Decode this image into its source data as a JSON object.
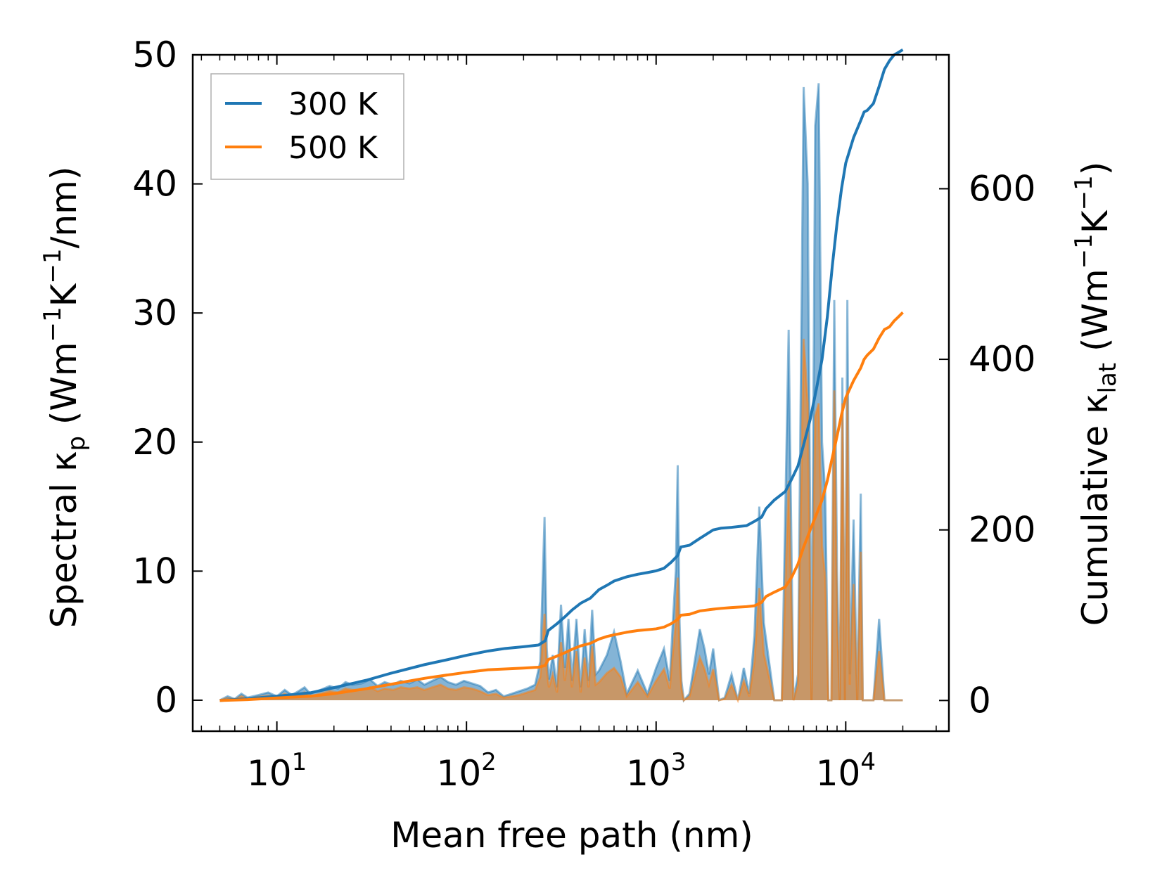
{
  "chart_data": {
    "type": "line",
    "x_scale": "log",
    "xlabel": "Mean free path (nm)",
    "ylabel_left": {
      "main": "Spectral κ",
      "sub": "p",
      "unit_open": " (Wm",
      "unit_exp1": "−1",
      "unit_mid": "K",
      "unit_exp2": "−1",
      "unit_close": "/nm)"
    },
    "ylabel_right": {
      "main": "Cumulative κ",
      "sub": "lat",
      "unit_open": " (Wm",
      "unit_exp1": "−1",
      "unit_mid": "K",
      "unit_exp2": "−1",
      "unit_close": ")"
    },
    "xlim": [
      3.6,
      35000
    ],
    "ylim_left": [
      -2.4,
      50
    ],
    "ylim_right": [
      -36,
      757
    ],
    "left_ticks": [
      0,
      10,
      20,
      30,
      40,
      50
    ],
    "right_ticks": [
      0,
      200,
      400,
      600
    ],
    "x_ticks": [
      {
        "value": 10,
        "base": "10",
        "exp": "1"
      },
      {
        "value": 100,
        "base": "10",
        "exp": "2"
      },
      {
        "value": 1000,
        "base": "10",
        "exp": "3"
      },
      {
        "value": 10000,
        "base": "10",
        "exp": "4"
      }
    ],
    "legend": {
      "position": "top-left",
      "entries": [
        {
          "label": "300 K",
          "color": "#1f77b4"
        },
        {
          "label": "500 K",
          "color": "#ff7f0e"
        }
      ]
    },
    "spectral": [
      {
        "name": "300 K",
        "color": "#1f77b4",
        "x": [
          5,
          5.5,
          6,
          6.5,
          7,
          8,
          9,
          10,
          11,
          12,
          13,
          14,
          15,
          17,
          19,
          21,
          23,
          25,
          28,
          31,
          34,
          37,
          41,
          45,
          50,
          55,
          60,
          66,
          73,
          80,
          88,
          97,
          107,
          118,
          130,
          143,
          157,
          173,
          190,
          209,
          230,
          245,
          258,
          265,
          272,
          285,
          300,
          315,
          330,
          345,
          360,
          380,
          400,
          420,
          440,
          460,
          480,
          500,
          550,
          600,
          650,
          700,
          800,
          900,
          1000,
          1100,
          1180,
          1230,
          1270,
          1300,
          1330,
          1360,
          1400,
          1500,
          1700,
          1800,
          1900,
          2000,
          2150,
          2300,
          2500,
          2700,
          2900,
          3100,
          3300,
          3500,
          3700,
          3900,
          4200,
          4600,
          5000,
          5300,
          5600,
          6000,
          6300,
          6600,
          6900,
          7200,
          7500,
          7800,
          8100,
          8400,
          8700,
          9000,
          9300,
          9600,
          9900,
          10200,
          10500,
          11000,
          11500,
          12000,
          12300,
          12600,
          13000,
          14000,
          15000,
          16000,
          17000,
          18000,
          18500,
          19000,
          19500,
          20000
        ],
        "y": [
          0,
          0.3,
          0.1,
          0.5,
          0.2,
          0.4,
          0.6,
          0.3,
          0.8,
          0.4,
          0.7,
          1.0,
          0.5,
          0.8,
          1.1,
          0.9,
          1.4,
          1.2,
          1.3,
          1.6,
          1.1,
          1.4,
          1.2,
          1.5,
          1.3,
          1.6,
          1.2,
          1.5,
          1.8,
          1.4,
          1.2,
          1.5,
          1.3,
          1.1,
          0.6,
          0.8,
          0.3,
          0.5,
          0.7,
          0.9,
          1.2,
          3.0,
          14.2,
          4.0,
          1.6,
          3.5,
          1.0,
          7.4,
          2.5,
          6.3,
          1.5,
          6.3,
          1.0,
          5.5,
          1.5,
          7.0,
          2.0,
          2.3,
          3.5,
          5.3,
          3.0,
          0.5,
          2.3,
          0.5,
          2.5,
          4.0,
          1.5,
          6.5,
          10.0,
          18.2,
          6.0,
          1.5,
          0,
          0.5,
          5.5,
          4.0,
          2.0,
          4.0,
          0,
          0.2,
          2.0,
          0,
          2.5,
          0.5,
          5.0,
          15.0,
          6.0,
          3.5,
          0,
          0,
          28.7,
          0,
          2.0,
          47.5,
          40.0,
          0,
          44.5,
          47.8,
          20.0,
          16.0,
          0,
          0,
          31.0,
          10.0,
          0,
          25.0,
          0,
          31.0,
          2.0,
          14.0,
          0,
          16.0,
          0,
          0,
          0,
          0,
          6.3,
          0,
          0,
          0,
          0,
          0,
          0,
          0
        ]
      },
      {
        "name": "500 K",
        "color": "#ff7f0e",
        "x": [
          5,
          5.5,
          6,
          6.5,
          7,
          8,
          9,
          10,
          11,
          12,
          13,
          14,
          15,
          17,
          19,
          21,
          23,
          25,
          28,
          31,
          34,
          37,
          41,
          45,
          50,
          55,
          60,
          66,
          73,
          80,
          88,
          97,
          107,
          118,
          130,
          143,
          157,
          173,
          190,
          209,
          230,
          245,
          258,
          265,
          272,
          285,
          300,
          315,
          330,
          345,
          360,
          380,
          400,
          420,
          440,
          460,
          480,
          500,
          550,
          600,
          650,
          700,
          800,
          900,
          1000,
          1100,
          1180,
          1230,
          1270,
          1300,
          1330,
          1360,
          1400,
          1500,
          1700,
          1800,
          1900,
          2000,
          2150,
          2300,
          2500,
          2700,
          2900,
          3100,
          3300,
          3500,
          3700,
          3900,
          4200,
          4600,
          5000,
          5300,
          5600,
          6000,
          6300,
          6600,
          6900,
          7200,
          7500,
          7800,
          8100,
          8400,
          8700,
          9000,
          9300,
          9600,
          9900,
          10200,
          10500,
          11000,
          11500,
          12000,
          12300,
          12600,
          13000,
          14000,
          15000,
          16000,
          17000,
          18000,
          18500,
          19000,
          19500,
          20000
        ],
        "y": [
          0,
          0.15,
          0.05,
          0.3,
          0.1,
          0.25,
          0.35,
          0.2,
          0.5,
          0.25,
          0.45,
          0.6,
          0.3,
          0.5,
          0.7,
          0.6,
          0.9,
          0.8,
          0.8,
          1.0,
          0.7,
          0.9,
          0.8,
          1.0,
          0.9,
          1.0,
          0.8,
          1.0,
          1.2,
          0.9,
          0.8,
          1.0,
          0.9,
          0.7,
          0.4,
          0.5,
          0.2,
          0.3,
          0.4,
          0.6,
          0.8,
          1.8,
          6.7,
          2.3,
          1.0,
          2.0,
          0.6,
          4.5,
          1.5,
          3.8,
          1.0,
          3.8,
          0.6,
          3.3,
          1.0,
          4.2,
          1.2,
          1.4,
          2.1,
          2.5,
          1.8,
          0.3,
          1.4,
          0.3,
          1.5,
          2.4,
          0.9,
          3.9,
          6.0,
          9.5,
          3.6,
          0.9,
          0,
          0.3,
          3.3,
          2.4,
          1.2,
          2.4,
          0,
          0.1,
          1.2,
          0,
          1.5,
          0.3,
          3.0,
          8.7,
          3.6,
          2.1,
          0,
          0,
          17.0,
          0,
          1.2,
          28.0,
          23.0,
          0,
          22.0,
          23.0,
          12.0,
          9.5,
          0,
          0,
          24.0,
          6.0,
          0,
          23.0,
          0,
          24.0,
          1.2,
          9.0,
          0,
          11.5,
          0,
          0,
          0,
          0,
          3.8,
          0,
          0,
          0,
          0,
          0,
          0,
          0
        ]
      }
    ],
    "cumulative": [
      {
        "name": "300 K",
        "color": "#1f77b4",
        "x": [
          5,
          7,
          10,
          15,
          20,
          30,
          40,
          60,
          80,
          100,
          130,
          160,
          200,
          240,
          260,
          270,
          300,
          330,
          360,
          400,
          450,
          500,
          550,
          600,
          700,
          800,
          900,
          1000,
          1100,
          1200,
          1300,
          1350,
          1500,
          1700,
          2000,
          2200,
          2500,
          3000,
          3300,
          3600,
          3800,
          4200,
          4800,
          5200,
          5600,
          6000,
          6500,
          7000,
          7500,
          8000,
          8500,
          9000,
          9500,
          10000,
          11000,
          12000,
          12500,
          13000,
          14000,
          15000,
          16000,
          17000,
          18000,
          19000,
          20000
        ],
        "y": [
          0,
          2,
          5,
          9,
          15,
          24,
          32,
          42,
          48,
          53,
          58,
          61,
          63,
          65,
          70,
          82,
          90,
          98,
          106,
          114,
          120,
          130,
          135,
          140,
          145,
          148,
          150,
          152,
          155,
          162,
          170,
          180,
          182,
          190,
          200,
          202,
          203,
          205,
          210,
          215,
          225,
          235,
          245,
          260,
          275,
          300,
          330,
          365,
          400,
          450,
          510,
          560,
          600,
          630,
          660,
          680,
          690,
          692,
          700,
          720,
          740,
          750,
          757,
          760,
          763
        ]
      },
      {
        "name": "500 K",
        "color": "#ff7f0e",
        "x": [
          5,
          7,
          10,
          15,
          20,
          30,
          40,
          60,
          80,
          100,
          130,
          160,
          200,
          240,
          260,
          270,
          300,
          330,
          360,
          400,
          450,
          500,
          550,
          600,
          700,
          800,
          900,
          1000,
          1100,
          1200,
          1300,
          1350,
          1500,
          1700,
          2000,
          2200,
          2500,
          3000,
          3300,
          3600,
          3800,
          4200,
          4800,
          5200,
          5600,
          6000,
          6500,
          7000,
          7500,
          8000,
          8500,
          9000,
          9500,
          10000,
          11000,
          12000,
          12500,
          13000,
          14000,
          15000,
          16000,
          17000,
          18000,
          19000,
          20000
        ],
        "y": [
          0,
          1,
          3,
          5,
          8,
          14,
          19,
          26,
          30,
          33,
          36,
          37,
          38,
          39,
          41,
          48,
          52,
          56,
          60,
          64,
          67,
          72,
          75,
          77,
          80,
          82,
          83,
          84,
          86,
          90,
          95,
          100,
          101,
          105,
          107,
          108,
          109,
          110,
          111,
          115,
          122,
          127,
          133,
          145,
          160,
          180,
          200,
          218,
          235,
          258,
          285,
          310,
          335,
          355,
          375,
          390,
          400,
          405,
          412,
          425,
          435,
          438,
          445,
          450,
          455
        ]
      }
    ]
  }
}
